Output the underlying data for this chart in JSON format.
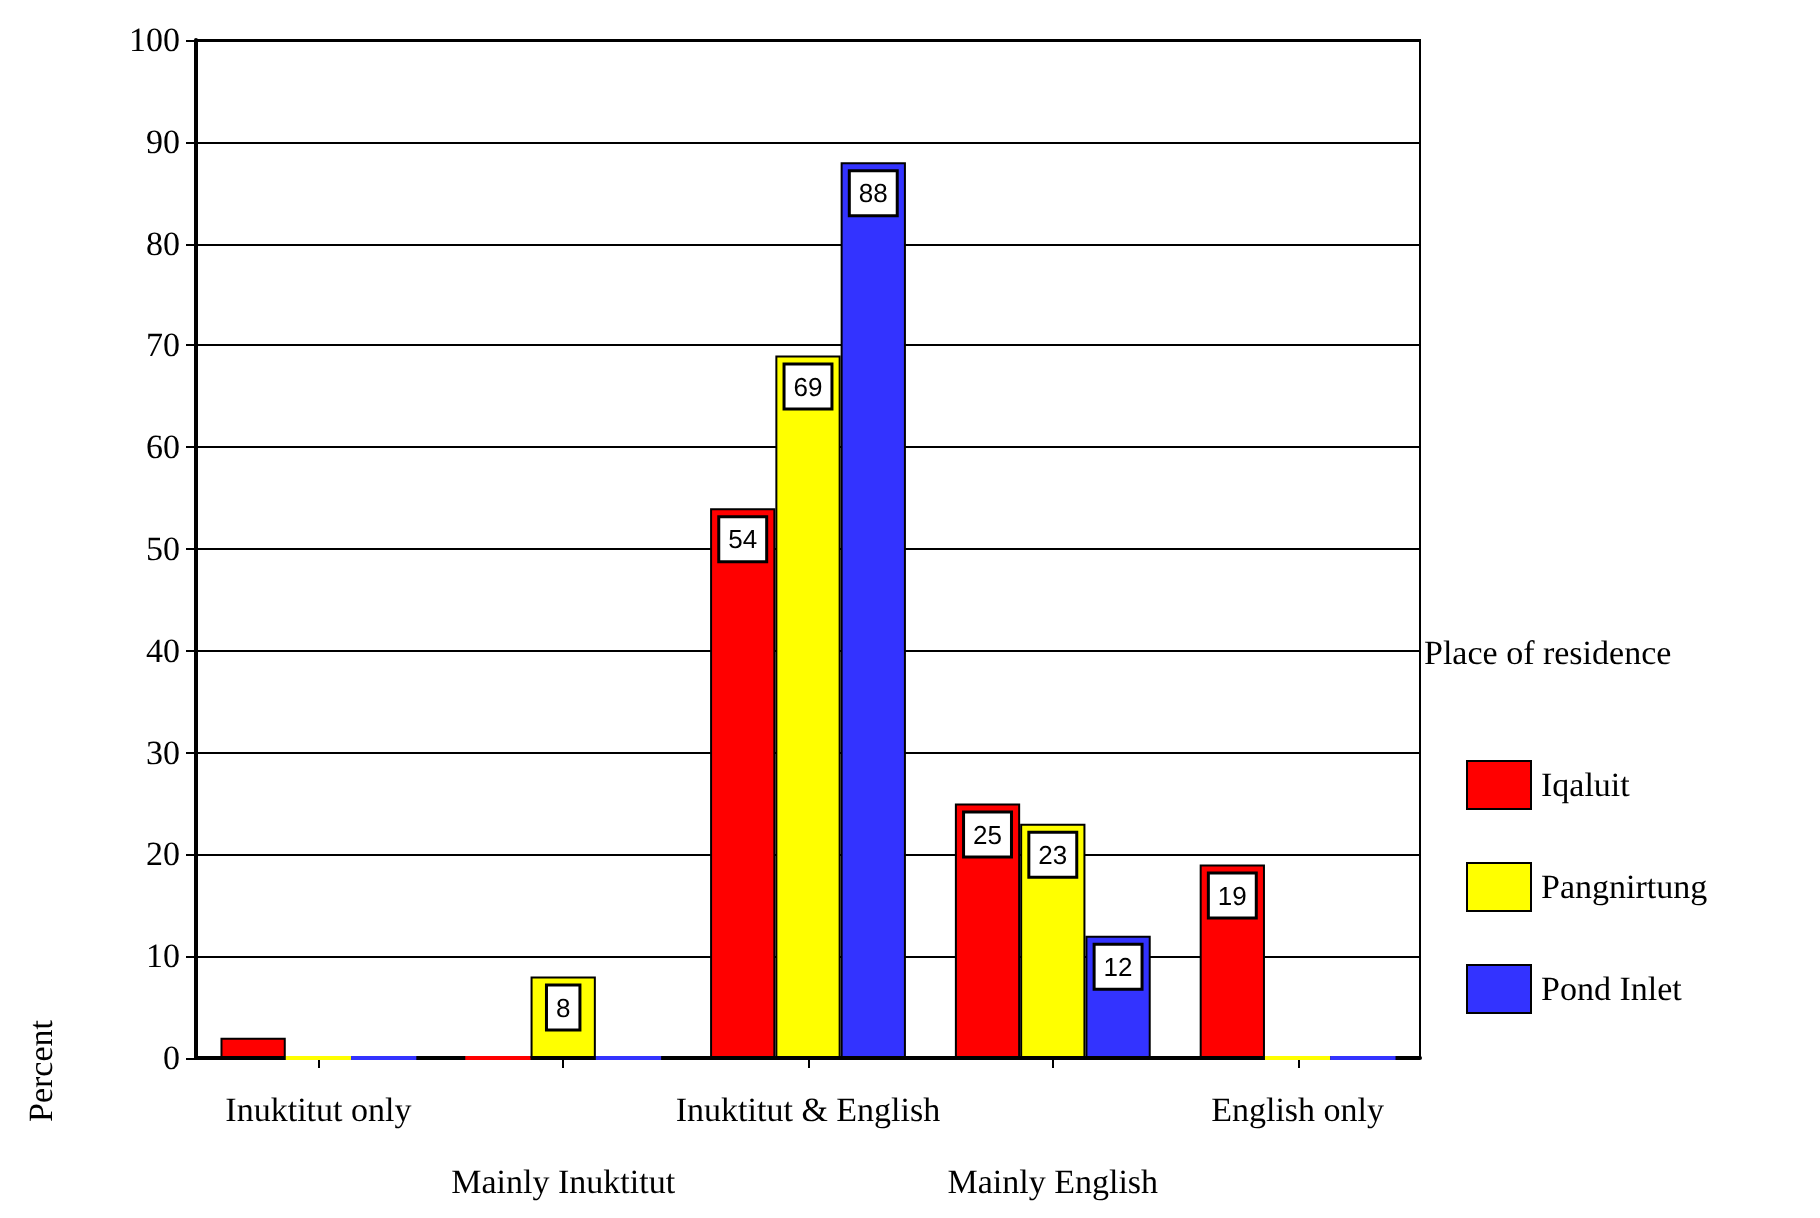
{
  "chart_data": {
    "type": "bar",
    "ylabel": "Percent",
    "legend_title": "Place of residence",
    "categories": [
      "Inuktitut only",
      "Mainly Inuktitut",
      "Inuktitut & English",
      "Mainly English",
      "English only"
    ],
    "series": [
      {
        "name": "Iqaluit",
        "color": "#ff0000",
        "values": [
          2,
          0,
          54,
          25,
          19
        ],
        "value_labels": [
          null,
          null,
          "54",
          "25",
          "19"
        ]
      },
      {
        "name": "Pangnirtung",
        "color": "#ffff00",
        "values": [
          0,
          8,
          69,
          23,
          0
        ],
        "value_labels": [
          null,
          "8",
          "69",
          "23",
          null
        ]
      },
      {
        "name": "Pond Inlet",
        "color": "#3333ff",
        "values": [
          0,
          0,
          88,
          12,
          0
        ],
        "value_labels": [
          null,
          null,
          "88",
          "12",
          null
        ]
      }
    ],
    "ylim": [
      0,
      100
    ],
    "yticks": [
      0,
      10,
      20,
      30,
      40,
      50,
      60,
      70,
      80,
      90,
      100
    ],
    "grid": "y",
    "legend": "right"
  }
}
